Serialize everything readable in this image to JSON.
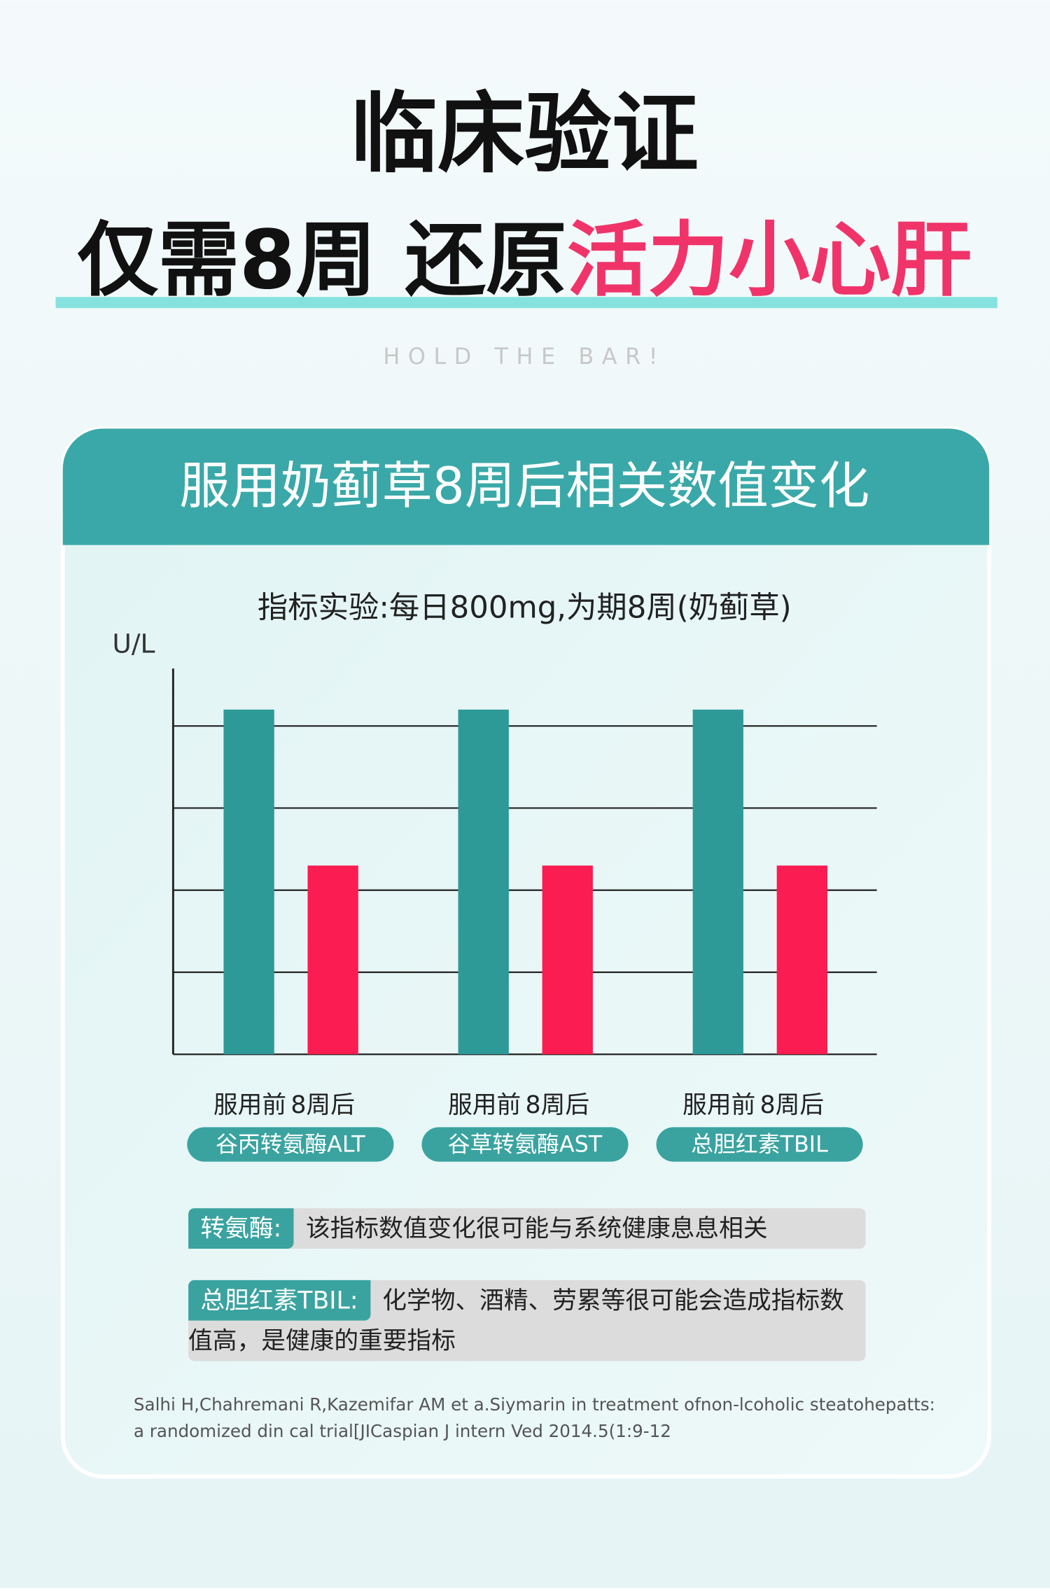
{
  "header": {
    "title": "临床验证",
    "subtitle_black": "仅需8周 还原",
    "subtitle_pink": "活力小心肝",
    "tagline": "HOLD THE BAR!"
  },
  "card_title": "服用奶蓟草8周后相关数值变化",
  "chart_data": {
    "type": "bar",
    "title": "指标实验:每日800mg,为期8周(奶蓟草)",
    "y_label": "U/L",
    "categories": [
      "谷丙转氨酶ALT",
      "谷草转氨酶AST",
      "总胆红素TBIL"
    ],
    "series": [
      {
        "name": "服用前",
        "color": "#2e9a98",
        "values": [
          4.2,
          4.2,
          4.2
        ]
      },
      {
        "name": "8周后",
        "color": "#fb1c52",
        "values": [
          2.3,
          2.3,
          2.3
        ]
      }
    ],
    "ylim": [
      0,
      4.7
    ],
    "yticks": [
      0,
      1,
      2,
      3,
      4
    ],
    "grid": true
  },
  "notes": [
    {
      "label": "转氨酶:",
      "text": "该指标数值变化很可能与系统健康息息相关"
    },
    {
      "label": "总胆红素TBIL:",
      "text": "化学物、酒精、劳累等很可能会造成指标数值高，是健康的重要指标"
    }
  ],
  "citation": [
    "Salhi H,Chahremani R,Kazemifar AM et a.Siymarin in treatment ofnon-lcoholic steatohepatts:",
    "a randomized din cal trial[JICaspian J intern Ved 2014.5(1:9-12"
  ]
}
